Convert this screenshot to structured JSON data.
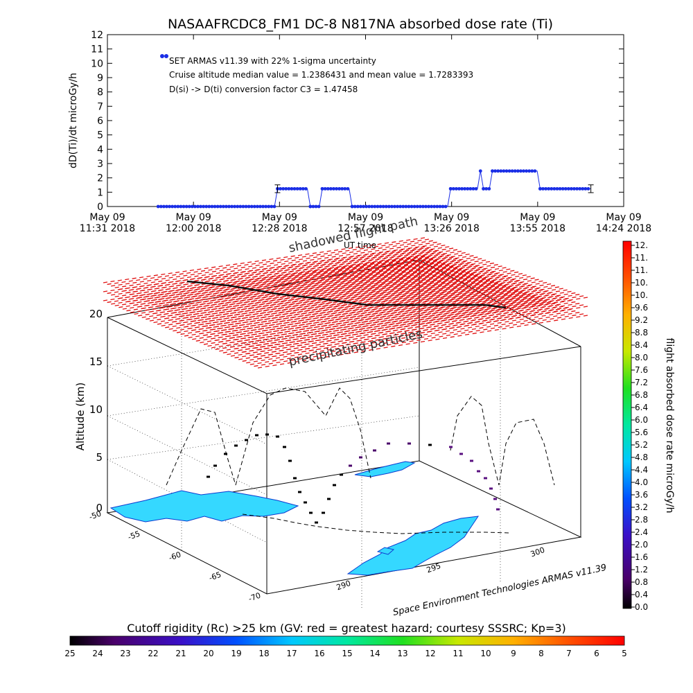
{
  "page": {
    "title": "NASAAFRCDC8_FM1 DC-8   N817NA absorbed dose rate (Ti)",
    "credit": "Space Environment Technologies ARMAS v11.39"
  },
  "chart_data": [
    {
      "type": "line",
      "ylabel": "dD(Ti)/dt microGy/h",
      "ylim": [
        0,
        12
      ],
      "y_ticks": [
        "0",
        "1",
        "2",
        "3",
        "4",
        "5",
        "6",
        "7",
        "8",
        "9",
        "10",
        "11",
        "12"
      ],
      "x_ticks": [
        {
          "top": "May 09",
          "bottom": "11:31 2018"
        },
        {
          "top": "May 09",
          "bottom": "12:00 2018"
        },
        {
          "top": "May 09",
          "bottom": "12:28 2018"
        },
        {
          "top": "May 09",
          "bottom": "12:57 2018"
        },
        {
          "top": "May 09",
          "bottom": "13:26 2018"
        },
        {
          "top": "May 09",
          "bottom": "13:55 2018"
        },
        {
          "top": "May 09",
          "bottom": "14:24 2018"
        }
      ],
      "x_overlay_label": "UT time",
      "annotations": [
        "SET ARMAS v11.39 with 22% 1-sigma uncertainty",
        "Cruise altitude median value = 1.2386431 and mean value = 1.7283393",
        "D(si) -> D(ti) conversion factor C3 = 1.47458"
      ],
      "series": [
        {
          "color": "#1a2ee6",
          "points": [
            {
              "t": "11:48",
              "v": 0
            },
            {
              "t": "12:27",
              "v": 0
            },
            {
              "t": "12:28",
              "v": 1.24
            },
            {
              "t": "12:38",
              "v": 1.24
            },
            {
              "t": "12:39",
              "v": 0
            },
            {
              "t": "12:42",
              "v": 0
            },
            {
              "t": "12:43",
              "v": 1.24
            },
            {
              "t": "12:52",
              "v": 1.24
            },
            {
              "t": "12:53",
              "v": 0
            },
            {
              "t": "13:25",
              "v": 0
            },
            {
              "t": "13:26",
              "v": 1.24
            },
            {
              "t": "13:35",
              "v": 1.24
            },
            {
              "t": "13:36",
              "v": 2.48
            },
            {
              "t": "13:37",
              "v": 1.24
            },
            {
              "t": "13:39",
              "v": 1.24
            },
            {
              "t": "13:40",
              "v": 2.48
            },
            {
              "t": "13:55",
              "v": 2.48
            },
            {
              "t": "13:56",
              "v": 1.24
            },
            {
              "t": "14:13",
              "v": 1.24
            }
          ],
          "error_bars_at": [
            "12:28",
            "14:13"
          ]
        }
      ]
    },
    {
      "type": "3d-flight-track",
      "zlabel": "Altitude (km)",
      "z_ticks": [
        "0",
        "5",
        "10",
        "15",
        "20"
      ],
      "lat_ticks": [
        "-50",
        "-55",
        "-60",
        "-65",
        "-70"
      ],
      "lon_ticks": [
        "290",
        "295",
        "300"
      ],
      "text_labels": [
        "shadowed flight path",
        "precipitating particles"
      ],
      "colorbar": {
        "label": "flight absorbed dose rate microGy/h",
        "ticks": [
          "12.",
          "11.",
          "11.",
          "10.",
          "10.",
          "9.6",
          "9.2",
          "8.8",
          "8.4",
          "8.0",
          "7.6",
          "7.2",
          "6.8",
          "6.4",
          "6.0",
          "5.6",
          "5.2",
          "4.8",
          "4.4",
          "4.0",
          "3.6",
          "3.2",
          "2.8",
          "2.4",
          "2.0",
          "1.6",
          "1.2",
          "0.8",
          "0.4",
          "0.0"
        ]
      }
    },
    {
      "type": "colorbar",
      "title": "Cutoff rigidity (Rc) >25 km (GV: red = greatest hazard; courtesy SSSRC; Kp=3)",
      "ticks": [
        "25",
        "24",
        "23",
        "22",
        "21",
        "20",
        "19",
        "18",
        "17",
        "16",
        "15",
        "14",
        "13",
        "12",
        "11",
        "10",
        "9",
        "8",
        "7",
        "6",
        "5"
      ]
    }
  ]
}
